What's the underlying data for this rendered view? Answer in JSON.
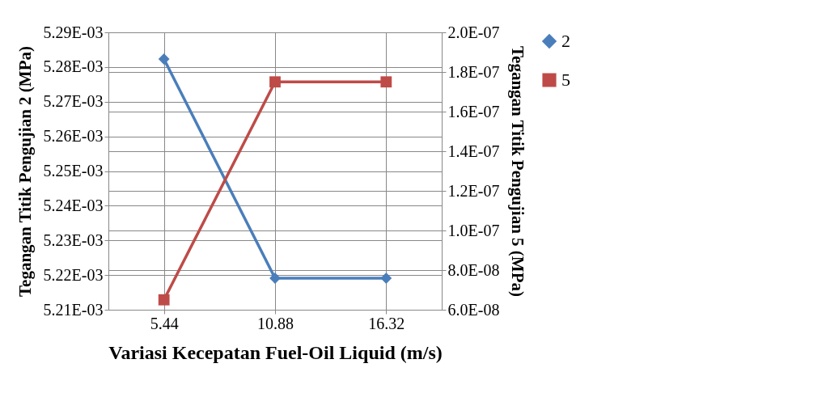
{
  "chart_data": {
    "type": "line",
    "categories": [
      "5.44",
      "10.88",
      "16.32"
    ],
    "xlabel": "Variasi  Kecepatan Fuel-Oil Liquid (m/s)",
    "ylabel": "Tegangan Titik Pengujian 2 (MPa)",
    "y2label": "Tegangan Titik Pengujian 5 (MPa)",
    "series": [
      {
        "name": "2",
        "color": "#4a7ebb",
        "marker": "diamond",
        "values": [
          0.0052823,
          0.0052191,
          0.0052191
        ]
      },
      {
        "name": "5",
        "color": "#be4b48",
        "marker": "square",
        "axis": "y2",
        "values": [
          6.5e-08,
          1.75e-07,
          1.75e-07
        ]
      }
    ],
    "ylim": [
      0.00521,
      0.00529
    ],
    "yticks": [
      {
        "value": 0.00521,
        "label": "5.21E-03"
      },
      {
        "value": 0.00522,
        "label": "5.22E-03"
      },
      {
        "value": 0.00523,
        "label": "5.23E-03"
      },
      {
        "value": 0.00524,
        "label": "5.24E-03"
      },
      {
        "value": 0.00525,
        "label": "5.25E-03"
      },
      {
        "value": 0.00526,
        "label": "5.26E-03"
      },
      {
        "value": 0.00527,
        "label": "5.27E-03"
      },
      {
        "value": 0.00528,
        "label": "5.28E-03"
      },
      {
        "value": 0.00529,
        "label": "5.29E-03"
      }
    ],
    "y2lim": [
      6e-08,
      2e-07
    ],
    "y2ticks": [
      {
        "value": 6e-08,
        "label": "6.0E-08"
      },
      {
        "value": 8e-08,
        "label": "8.0E-08"
      },
      {
        "value": 1e-07,
        "label": "1.0E-07"
      },
      {
        "value": 1.2e-07,
        "label": "1.2E-07"
      },
      {
        "value": 1.4e-07,
        "label": "1.4E-07"
      },
      {
        "value": 1.6e-07,
        "label": "1.6E-07"
      },
      {
        "value": 1.8e-07,
        "label": "1.8E-07"
      },
      {
        "value": 2e-07,
        "label": "2.0E-07"
      }
    ],
    "grid": true,
    "legend": "right",
    "line_style": "solid"
  }
}
